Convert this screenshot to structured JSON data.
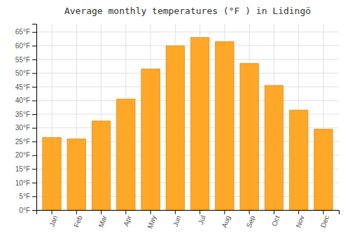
{
  "chart_data": {
    "type": "bar",
    "title": "Average monthly temperatures (°F ) in Lidingö",
    "categories": [
      "Jan",
      "Feb",
      "Mar",
      "Apr",
      "May",
      "Jun",
      "Jul",
      "Aug",
      "Sep",
      "Oct",
      "Nov",
      "Dec"
    ],
    "values": [
      26.5,
      26.0,
      32.5,
      40.5,
      51.5,
      60.0,
      63.0,
      61.5,
      53.5,
      45.5,
      36.5,
      29.5
    ],
    "color": "#FFA726",
    "ylim": [
      0,
      68
    ],
    "yticks": [
      {
        "value": 0,
        "label": "0°F"
      },
      {
        "value": 5,
        "label": "5°F"
      },
      {
        "value": 10,
        "label": "10°F"
      },
      {
        "value": 15,
        "label": "15°F"
      },
      {
        "value": 20,
        "label": "20°F"
      },
      {
        "value": 25,
        "label": "25°F"
      },
      {
        "value": 30,
        "label": "30°F"
      },
      {
        "value": 35,
        "label": "35°F"
      },
      {
        "value": 40,
        "label": "40°F"
      },
      {
        "value": 45,
        "label": "45°F"
      },
      {
        "value": 50,
        "label": "50°F"
      },
      {
        "value": 55,
        "label": "55°F"
      },
      {
        "value": 60,
        "label": "60°F"
      },
      {
        "value": 65,
        "label": "65°F"
      }
    ],
    "grid": true
  }
}
